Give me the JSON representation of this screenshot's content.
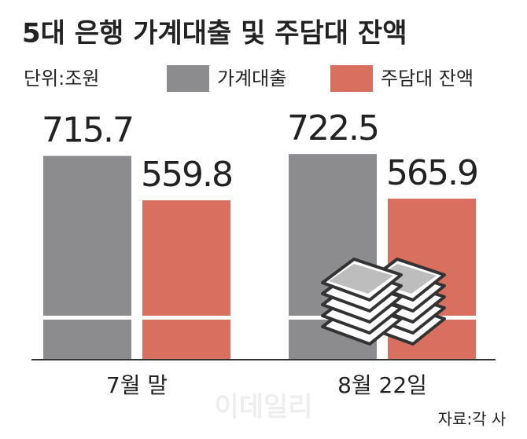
{
  "chart_data": {
    "type": "bar",
    "title": "5대 은행 가계대출 및 주담대 잔액",
    "unit": "단위:조원",
    "categories": [
      "7월 말",
      "8월 22일"
    ],
    "series": [
      {
        "name": "가계대출",
        "color": "#8c8c8e",
        "values": [
          715.7,
          722.5
        ]
      },
      {
        "name": "주담대 잔액",
        "color": "#d9705f",
        "values": [
          559.8,
          565.9
        ]
      }
    ],
    "ylim": [
      0,
      800
    ],
    "source": "자료:각 사",
    "watermark": "이데일리"
  }
}
